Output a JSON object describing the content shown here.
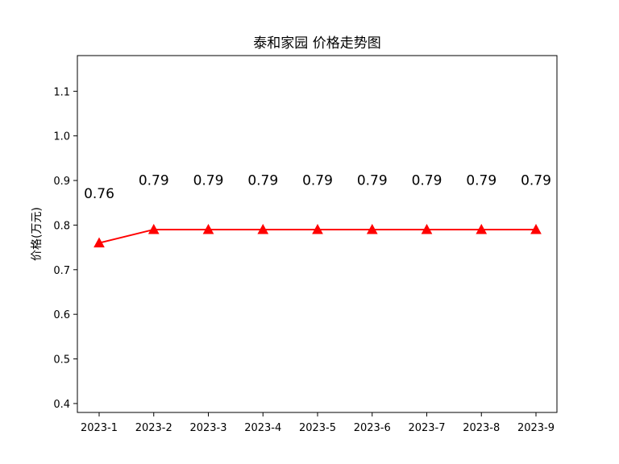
{
  "chart_data": {
    "type": "line",
    "title": "泰和家园 价格走势图",
    "xlabel": "",
    "ylabel": "价格(万元)",
    "categories": [
      "2023-1",
      "2023-2",
      "2023-3",
      "2023-4",
      "2023-5",
      "2023-6",
      "2023-7",
      "2023-8",
      "2023-9"
    ],
    "series": [
      {
        "values": [
          0.76,
          0.79,
          0.79,
          0.79,
          0.79,
          0.79,
          0.79,
          0.79,
          0.79
        ],
        "color": "#ff0000",
        "marker": "triangle"
      }
    ],
    "data_labels": [
      "0.76",
      "0.79",
      "0.79",
      "0.79",
      "0.79",
      "0.79",
      "0.79",
      "0.79",
      "0.79"
    ],
    "ylim": [
      0.38,
      1.18
    ],
    "yticks": [
      "0.4",
      "0.5",
      "0.6",
      "0.7",
      "0.8",
      "0.9",
      "1.0",
      "1.1"
    ],
    "grid": false,
    "legend": "none"
  }
}
